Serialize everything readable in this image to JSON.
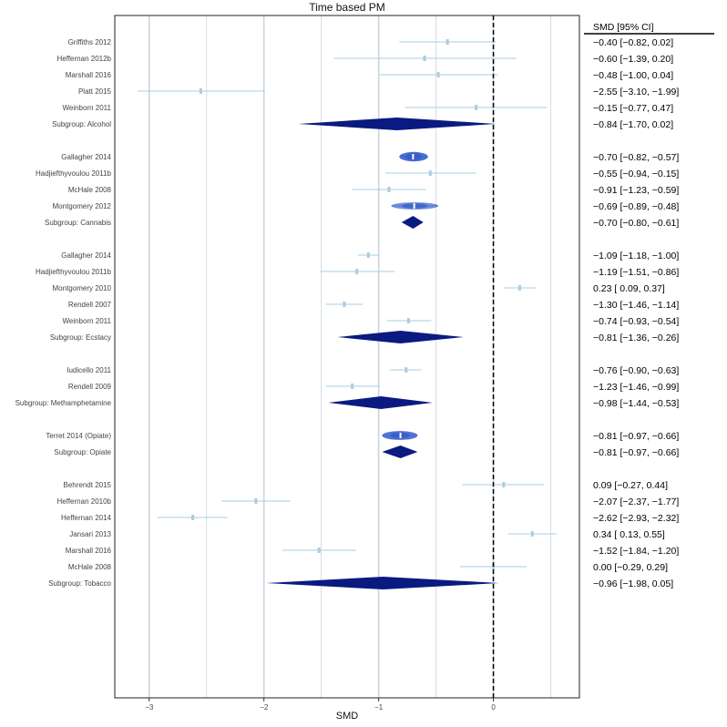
{
  "chart_data": {
    "type": "forest",
    "title": "Time based PM",
    "xlabel": "SMD",
    "ci_header": "SMD [95% CI]",
    "xlim": [
      -3.3,
      0.75
    ],
    "xticks": [
      -3,
      -2,
      -1,
      0
    ],
    "xtick_labels": [
      "−3",
      "−2",
      "−1",
      "0"
    ],
    "reference_line": 0,
    "colors": {
      "summary": "#0a1a80",
      "study": "#a9cde0",
      "study_fill": "#cfe3ef",
      "highlight": "#2a54c8",
      "grid": "#c9d6dc"
    },
    "rows": [
      {
        "label": "Griffiths 2012",
        "kind": "study",
        "est": -0.4,
        "lo": -0.82,
        "hi": 0.02,
        "weight": 0.3,
        "ci": "−0.40 [−0.82,  0.02]"
      },
      {
        "label": "Heffernan 2012b",
        "kind": "study",
        "est": -0.6,
        "lo": -1.39,
        "hi": 0.2,
        "weight": 0.3,
        "ci": "−0.60 [−1.39,  0.20]"
      },
      {
        "label": "Marshall 2016",
        "kind": "study",
        "est": -0.48,
        "lo": -1.0,
        "hi": 0.04,
        "weight": 0.3,
        "ci": "−0.48 [−1.00,  0.04]"
      },
      {
        "label": "Platt 2015",
        "kind": "study",
        "est": -2.55,
        "lo": -3.1,
        "hi": -1.99,
        "weight": 0.3,
        "ci": "−2.55 [−3.10, −1.99]"
      },
      {
        "label": "Weinborn 2011",
        "kind": "study",
        "est": -0.15,
        "lo": -0.77,
        "hi": 0.47,
        "weight": 0.3,
        "ci": "−0.15 [−0.77,  0.47]"
      },
      {
        "label": "Subgroup: Alcohol",
        "kind": "summary",
        "est": -0.84,
        "lo": -1.7,
        "hi": 0.02,
        "ci": "−0.84 [−1.70,  0.02]"
      },
      {
        "label": "Gallagher 2014",
        "kind": "study",
        "est": -0.7,
        "lo": -0.82,
        "hi": -0.57,
        "weight": 1.0,
        "ci": "−0.70 [−0.82, −0.57]"
      },
      {
        "label": "Hadjiefthyvoulou 2011b",
        "kind": "study",
        "est": -0.55,
        "lo": -0.94,
        "hi": -0.15,
        "weight": 0.35,
        "ci": "−0.55 [−0.94, −0.15]"
      },
      {
        "label": "McHale 2008",
        "kind": "study",
        "est": -0.91,
        "lo": -1.23,
        "hi": -0.59,
        "weight": 0.35,
        "ci": "−0.91 [−1.23, −0.59]"
      },
      {
        "label": "Montgomery 2012",
        "kind": "study",
        "est": -0.69,
        "lo": -0.89,
        "hi": -0.48,
        "weight": 0.6,
        "ci": "−0.69 [−0.89, −0.48]"
      },
      {
        "label": "Subgroup: Cannabis",
        "kind": "summary",
        "est": -0.7,
        "lo": -0.8,
        "hi": -0.61,
        "ci": "−0.70 [−0.80, −0.61]"
      },
      {
        "label": "Gallagher 2014",
        "kind": "study",
        "est": -1.09,
        "lo": -1.18,
        "hi": -1.0,
        "weight": 0.35,
        "ci": "−1.09 [−1.18, −1.00]"
      },
      {
        "label": "Hadjiefthyvoulou 2011b",
        "kind": "study",
        "est": -1.19,
        "lo": -1.51,
        "hi": -0.86,
        "weight": 0.3,
        "ci": "−1.19 [−1.51, −0.86]"
      },
      {
        "label": "Montgomery 2010",
        "kind": "study",
        "est": 0.23,
        "lo": 0.09,
        "hi": 0.37,
        "weight": 0.3,
        "ci": " 0.23 [ 0.09,  0.37]"
      },
      {
        "label": "Rendell 2007",
        "kind": "study",
        "est": -1.3,
        "lo": -1.46,
        "hi": -1.14,
        "weight": 0.3,
        "ci": "−1.30 [−1.46, −1.14]"
      },
      {
        "label": "Weinborn 2011",
        "kind": "study",
        "est": -0.74,
        "lo": -0.93,
        "hi": -0.54,
        "weight": 0.3,
        "ci": "−0.74 [−0.93, −0.54]"
      },
      {
        "label": "Subgroup: Ecstacy",
        "kind": "summary",
        "est": -0.81,
        "lo": -1.36,
        "hi": -0.26,
        "ci": "−0.81 [−1.36, −0.26]"
      },
      {
        "label": "Iudicello 2011",
        "kind": "study",
        "est": -0.76,
        "lo": -0.9,
        "hi": -0.63,
        "weight": 0.3,
        "ci": "−0.76 [−0.90, −0.63]"
      },
      {
        "label": "Rendell 2009",
        "kind": "study",
        "est": -1.23,
        "lo": -1.46,
        "hi": -0.99,
        "weight": 0.3,
        "ci": "−1.23 [−1.46, −0.99]"
      },
      {
        "label": "Subgroup: Methamphetamine",
        "kind": "summary",
        "est": -0.98,
        "lo": -1.44,
        "hi": -0.53,
        "ci": "−0.98 [−1.44, −0.53]"
      },
      {
        "label": "Terret 2014 (Opiate)",
        "kind": "study",
        "est": -0.81,
        "lo": -0.97,
        "hi": -0.66,
        "weight": 0.9,
        "ci": "−0.81 [−0.97, −0.66]"
      },
      {
        "label": "Subgroup: Opiate",
        "kind": "summary",
        "est": -0.81,
        "lo": -0.97,
        "hi": -0.66,
        "ci": "−0.81 [−0.97, −0.66]"
      },
      {
        "label": "Behrendt 2015",
        "kind": "study",
        "est": 0.09,
        "lo": -0.27,
        "hi": 0.44,
        "weight": 0.3,
        "ci": " 0.09 [−0.27,  0.44]"
      },
      {
        "label": "Heffernan 2010b",
        "kind": "study",
        "est": -2.07,
        "lo": -2.37,
        "hi": -1.77,
        "weight": 0.3,
        "ci": "−2.07 [−2.37, −1.77]"
      },
      {
        "label": "Heffernan 2014",
        "kind": "study",
        "est": -2.62,
        "lo": -2.93,
        "hi": -2.32,
        "weight": 0.3,
        "ci": "−2.62 [−2.93, −2.32]"
      },
      {
        "label": "Jansari 2013",
        "kind": "study",
        "est": 0.34,
        "lo": 0.13,
        "hi": 0.55,
        "weight": 0.3,
        "ci": " 0.34 [ 0.13,  0.55]"
      },
      {
        "label": "Marshall 2016",
        "kind": "study",
        "est": -1.52,
        "lo": -1.84,
        "hi": -1.2,
        "weight": 0.3,
        "ci": "−1.52 [−1.84, −1.20]"
      },
      {
        "label": "McHale 2008",
        "kind": "study",
        "est": 0.0,
        "lo": -0.29,
        "hi": 0.29,
        "weight": 0.3,
        "ci": " 0.00 [−0.29,  0.29]"
      },
      {
        "label": "Subgroup: Tobacco",
        "kind": "summary",
        "est": -0.96,
        "lo": -1.98,
        "hi": 0.05,
        "ci": "−0.96 [−1.98,  0.05]"
      }
    ]
  }
}
